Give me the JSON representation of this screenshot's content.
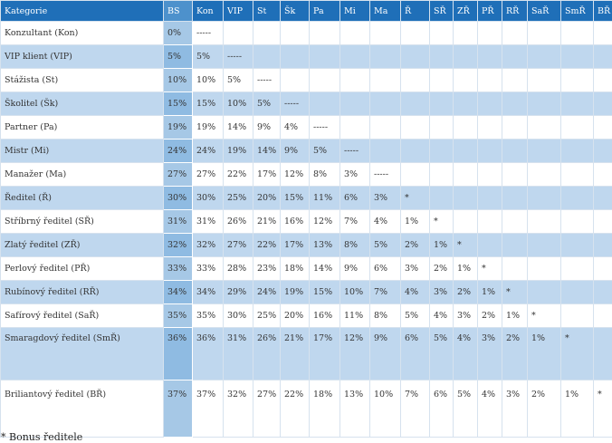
{
  "header": [
    "Kategorie",
    "BS",
    "Kon",
    "VIP",
    "St",
    "Šk",
    "Pa",
    "Mi",
    "Ma",
    "Ř",
    "SŘ",
    "ZŘ",
    "PŘ",
    "RŘ",
    "SaŘ",
    "SmŘ",
    "BŘ"
  ],
  "rows": [
    [
      "Konzultant (Kon)",
      "0%",
      "-----",
      "",
      "",
      "",
      "",
      "",
      "",
      "",
      "",
      "",
      "",
      "",
      "",
      "",
      ""
    ],
    [
      "VIP klient (VIP)",
      "5%",
      "5%",
      "-----",
      "",
      "",
      "",
      "",
      "",
      "",
      "",
      "",
      "",
      "",
      "",
      "",
      ""
    ],
    [
      "Stážista (St)",
      "10%",
      "10%",
      "5%",
      "-----",
      "",
      "",
      "",
      "",
      "",
      "",
      "",
      "",
      "",
      "",
      "",
      ""
    ],
    [
      "Školitel (Šk)",
      "15%",
      "15%",
      "10%",
      "5%",
      "-----",
      "",
      "",
      "",
      "",
      "",
      "",
      "",
      "",
      "",
      "",
      ""
    ],
    [
      "Partner (Pa)",
      "19%",
      "19%",
      "14%",
      "9%",
      "4%",
      "-----",
      "",
      "",
      "",
      "",
      "",
      "",
      "",
      "",
      "",
      ""
    ],
    [
      "Mistr (Mi)",
      "24%",
      "24%",
      "19%",
      "14%",
      "9%",
      "5%",
      "-----",
      "",
      "",
      "",
      "",
      "",
      "",
      "",
      "",
      ""
    ],
    [
      "Manažer (Ma)",
      "27%",
      "27%",
      "22%",
      "17%",
      "12%",
      "8%",
      "3%",
      "-----",
      "",
      "",
      "",
      "",
      "",
      "",
      "",
      ""
    ],
    [
      "Ředitel (Ř)",
      "30%",
      "30%",
      "25%",
      "20%",
      "15%",
      "11%",
      "6%",
      "3%",
      "*",
      "",
      "",
      "",
      "",
      "",
      "",
      ""
    ],
    [
      "Stříbrný ředitel (SŘ)",
      "31%",
      "31%",
      "26%",
      "21%",
      "16%",
      "12%",
      "7%",
      "4%",
      "1%",
      "*",
      "",
      "",
      "",
      "",
      "",
      ""
    ],
    [
      "Zlatý ředitel (ZŘ)",
      "32%",
      "32%",
      "27%",
      "22%",
      "17%",
      "13%",
      "8%",
      "5%",
      "2%",
      "1%",
      "*",
      "",
      "",
      "",
      "",
      ""
    ],
    [
      "Perlový ředitel (PŘ)",
      "33%",
      "33%",
      "28%",
      "23%",
      "18%",
      "14%",
      "9%",
      "6%",
      "3%",
      "2%",
      "1%",
      "*",
      "",
      "",
      "",
      ""
    ],
    [
      "Rubínový ředitel (RŘ)",
      "34%",
      "34%",
      "29%",
      "24%",
      "19%",
      "15%",
      "10%",
      "7%",
      "4%",
      "3%",
      "2%",
      "1%",
      "*",
      "",
      "",
      ""
    ],
    [
      "Safírový ředitel (SaŘ)",
      "35%",
      "35%",
      "30%",
      "25%",
      "20%",
      "16%",
      "11%",
      "8%",
      "5%",
      "4%",
      "3%",
      "2%",
      "1%",
      "*",
      "",
      ""
    ],
    [
      "Smaragdový ředitel (SmŘ)",
      "36%",
      "36%",
      "31%",
      "26%",
      "21%",
      "17%",
      "12%",
      "9%",
      "6%",
      "5%",
      "4%",
      "3%",
      "2%",
      "1%",
      "*",
      ""
    ],
    [
      "Briliantový ředitel (BŘ)",
      "37%",
      "37%",
      "32%",
      "27%",
      "22%",
      "18%",
      "13%",
      "10%",
      "7%",
      "6%",
      "5%",
      "4%",
      "3%",
      "2%",
      "1%",
      "*"
    ]
  ],
  "footnote": "* Bonus ředitele"
}
